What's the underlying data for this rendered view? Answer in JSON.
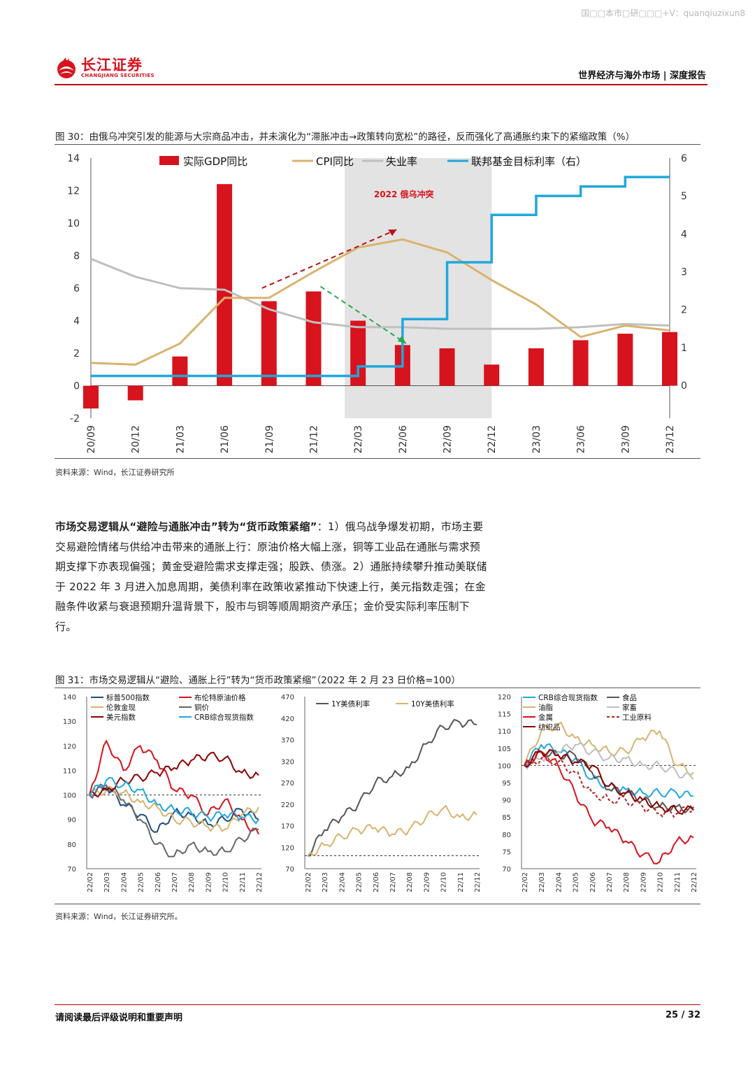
{
  "watermark": "国□□本市□研□□□+V：quanqiuzixun8",
  "header": {
    "brand_cn": "长江证券",
    "brand_en": "CHANGJIANG SECURITIES",
    "section": "世界经济与海外市场 | 深度报告"
  },
  "fig30": {
    "caption": "图 30：由俄乌冲突引发的能源与大宗商品冲击，并未演化为“滞胀冲击→政策转向宽松”的路径，反而强化了高通胀约束下的紧缩政策（%）",
    "source": "资料来源：Wind，长江证券研究所",
    "annotation": "2022 俄乌冲突"
  },
  "paragraph": {
    "lead": "市场交易逻辑从“避险与通胀冲击”转为“货币政策紧缩”",
    "body": "：1）俄乌战争爆发初期，市场主要交易避险情绪与供给冲击带来的通胀上行：原油价格大幅上涨，铜等工业品在通胀与需求预期支撑下亦表现偏强；黄金受避险需求支撑走强；股跌、债涨。2）通胀持续攀升推动美联储于 2022 年 3 月进入加息周期，美债利率在政策收紧推动下快速上行，美元指数走强；在金融条件收紧与衰退预期升温背景下，股市与铜等顺周期资产承压；金价受实际利率压制下行。"
  },
  "fig31": {
    "caption": "图 31：市场交易逻辑从“避险、通胀上行”转为“货币政策紧缩”（2022 年 2 月 23 日价格=100）",
    "source": "资料来源：Wind，长江证券研究所。"
  },
  "footer": {
    "disclaimer": "请阅读最后评级说明和重要声明",
    "page": "25 / 32"
  },
  "chart_data": [
    {
      "type": "bar+line",
      "categories": [
        "20/09",
        "20/12",
        "21/03",
        "21/06",
        "21/09",
        "21/12",
        "22/03",
        "22/06",
        "22/09",
        "22/12",
        "23/03",
        "23/06",
        "23/09",
        "23/12"
      ],
      "ylim": [
        -2,
        14
      ],
      "y2lim": [
        0,
        6
      ],
      "legend_position": "top",
      "highlight_range": [
        "22/03",
        "22/12"
      ],
      "series": [
        {
          "name": "实际GDP同比",
          "kind": "bar",
          "color": "#d7131d",
          "values": [
            -1.4,
            -0.9,
            1.8,
            12.4,
            5.2,
            5.8,
            4.0,
            2.5,
            2.3,
            1.3,
            2.3,
            2.8,
            3.2,
            3.3
          ]
        },
        {
          "name": "CPI同比",
          "kind": "line",
          "color": "#d9b36e",
          "values": [
            1.4,
            1.3,
            2.6,
            5.4,
            5.4,
            7.0,
            8.5,
            9.0,
            8.2,
            6.5,
            5.0,
            3.0,
            3.7,
            3.4
          ]
        },
        {
          "name": "失业率",
          "kind": "line",
          "color": "#bfbfbf",
          "values": [
            7.8,
            6.7,
            6.0,
            5.9,
            4.7,
            3.9,
            3.6,
            3.6,
            3.5,
            3.5,
            3.5,
            3.6,
            3.8,
            3.7
          ]
        },
        {
          "name": "联邦基金目标利率（右）",
          "kind": "step",
          "axis": "right",
          "color": "#1fa8dc",
          "values": [
            0.25,
            0.25,
            0.25,
            0.25,
            0.25,
            0.25,
            0.5,
            1.75,
            3.25,
            4.5,
            5.0,
            5.25,
            5.5,
            5.5
          ]
        }
      ]
    },
    {
      "type": "line",
      "name": "fig31-left",
      "x": [
        "22/02",
        "22/03",
        "22/04",
        "22/05",
        "22/06",
        "22/07",
        "22/08",
        "22/09",
        "22/10",
        "22/11",
        "22/12"
      ],
      "ylim": [
        70,
        140
      ],
      "baseline": 100,
      "series": [
        {
          "name": "标普500指数",
          "color": "#1f4e79",
          "values": [
            100,
            103,
            96,
            92,
            85,
            93,
            92,
            88,
            90,
            94,
            90
          ]
        },
        {
          "name": "布伦特原油价格",
          "color": "#d7131d",
          "values": [
            100,
            122,
            110,
            120,
            114,
            102,
            100,
            92,
            98,
            90,
            84
          ]
        },
        {
          "name": "伦敦金现",
          "color": "#d9b36e",
          "values": [
            100,
            102,
            101,
            97,
            95,
            90,
            89,
            87,
            86,
            92,
            95
          ]
        },
        {
          "name": "铜价",
          "color": "#666666",
          "values": [
            100,
            104,
            98,
            90,
            80,
            75,
            80,
            77,
            77,
            82,
            86
          ]
        },
        {
          "name": "美元指数",
          "color": "#8b0000",
          "values": [
            100,
            102,
            106,
            107,
            109,
            111,
            114,
            116,
            115,
            109,
            108
          ]
        },
        {
          "name": "CRB综合现货指数",
          "color": "#1fa8dc",
          "values": [
            100,
            106,
            104,
            102,
            96,
            94,
            93,
            91,
            92,
            91,
            90
          ]
        }
      ]
    },
    {
      "type": "line",
      "name": "fig31-middle",
      "x": [
        "22/02",
        "22/03",
        "22/04",
        "22/05",
        "22/06",
        "22/07",
        "22/08",
        "22/09",
        "22/10",
        "22/11",
        "22/12"
      ],
      "ylim": [
        70,
        470
      ],
      "baseline": 100,
      "series": [
        {
          "name": "1Y美债利率",
          "color": "#555555",
          "values": [
            100,
            160,
            190,
            220,
            270,
            285,
            305,
            360,
            400,
            410,
            405
          ]
        },
        {
          "name": "10Y美债利率",
          "color": "#d9b36e",
          "values": [
            100,
            125,
            145,
            160,
            165,
            150,
            160,
            190,
            210,
            190,
            195
          ]
        }
      ]
    },
    {
      "type": "line",
      "name": "fig31-right",
      "x": [
        "22/02",
        "22/03",
        "22/04",
        "22/05",
        "22/06",
        "22/07",
        "22/08",
        "22/09",
        "22/10",
        "22/11",
        "22/12"
      ],
      "ylim": [
        70,
        120
      ],
      "baseline": 100,
      "series": [
        {
          "name": "CRB综合现货指数",
          "color": "#1fa8dc",
          "values": [
            100,
            106,
            104,
            102,
            96,
            94,
            93,
            92,
            92,
            92,
            91
          ]
        },
        {
          "name": "食品",
          "color": "#555555",
          "values": [
            100,
            104,
            103,
            103,
            98,
            93,
            92,
            90,
            88,
            88,
            87
          ]
        },
        {
          "name": "油脂",
          "color": "#d9b36e",
          "values": [
            100,
            110,
            112,
            108,
            106,
            104,
            104,
            108,
            110,
            100,
            98
          ]
        },
        {
          "name": "家畜",
          "color": "#bfbfbf",
          "values": [
            100,
            102,
            104,
            106,
            104,
            102,
            102,
            100,
            100,
            98,
            96
          ]
        },
        {
          "name": "金属",
          "color": "#d7131d",
          "values": [
            100,
            104,
            100,
            92,
            84,
            82,
            78,
            74,
            72,
            78,
            79
          ]
        },
        {
          "name": "工业原料",
          "color": "#b22222",
          "values": [
            100,
            102,
            101,
            98,
            92,
            90,
            90,
            88,
            86,
            86,
            88
          ]
        },
        {
          "name": "纺织品",
          "color": "#8b0000",
          "values": [
            100,
            104,
            103,
            101,
            100,
            94,
            92,
            90,
            88,
            87,
            87
          ]
        }
      ]
    }
  ]
}
